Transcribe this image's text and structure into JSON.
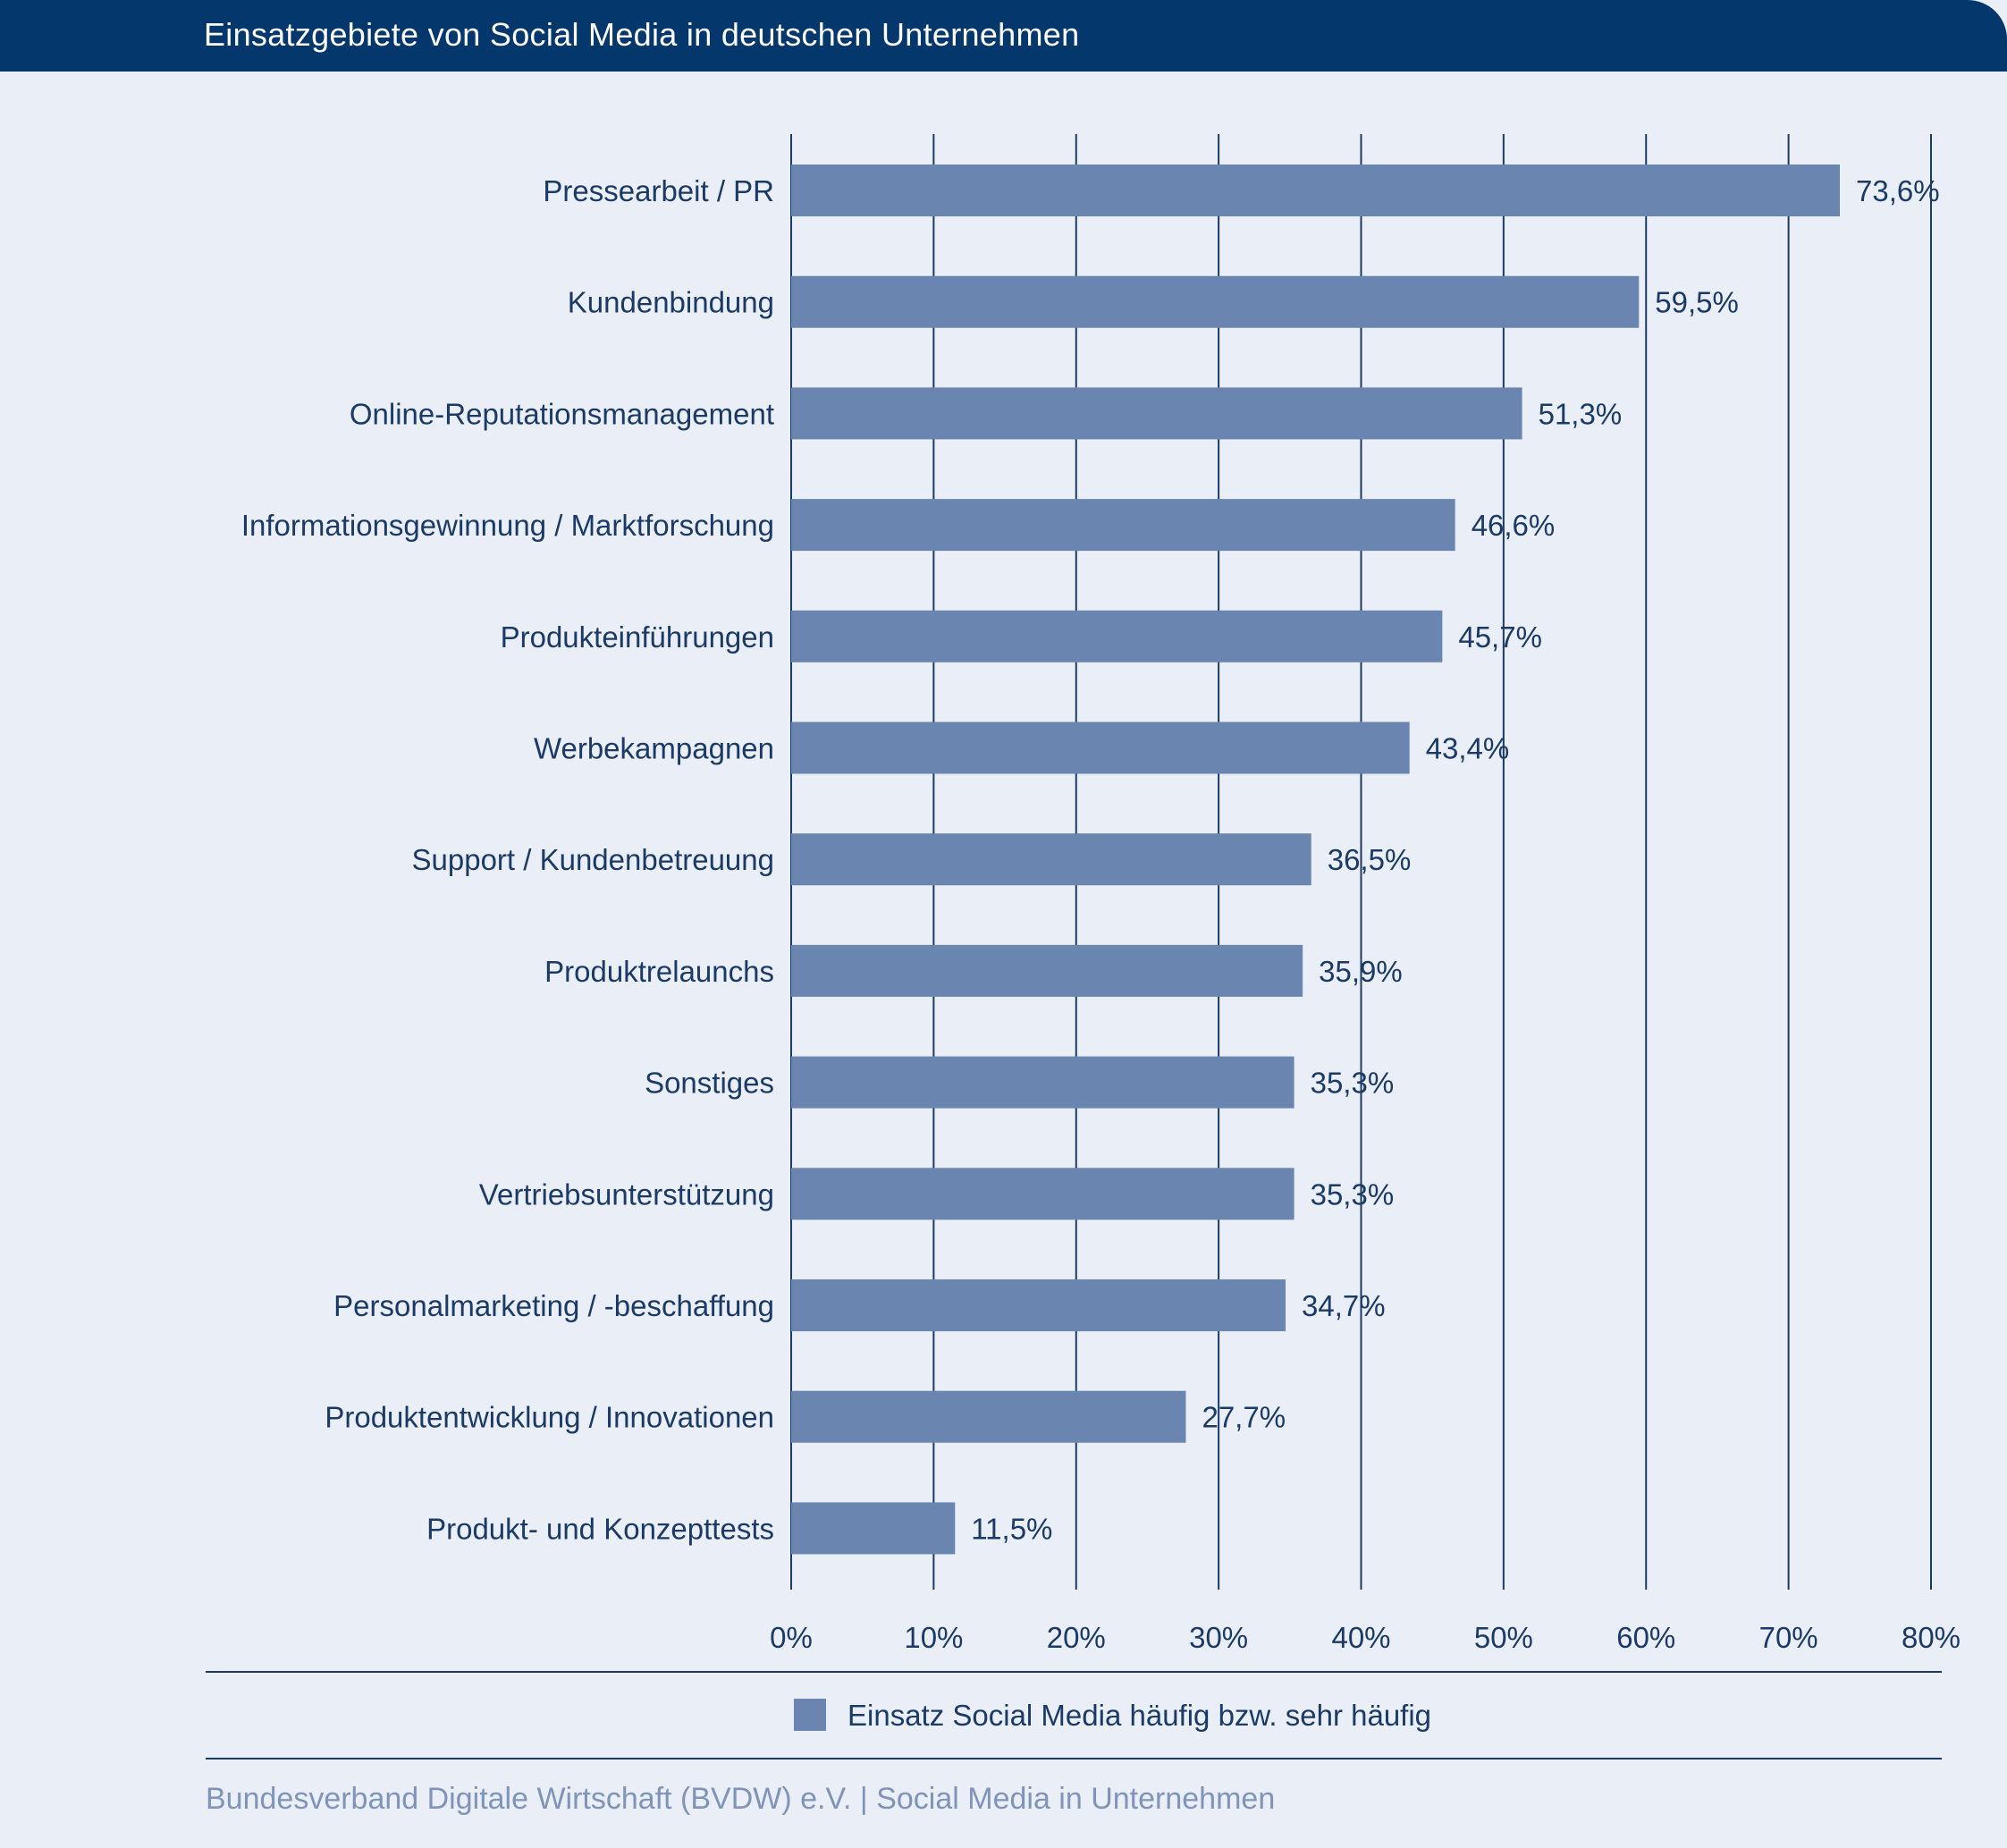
{
  "header": {
    "title": "Einsatzgebiete von Social Media in deutschen Unternehmen"
  },
  "colors": {
    "header_bg": "#04376b",
    "bar": "#6a85b0",
    "text": "#1b3a66",
    "background": "#eaeef6",
    "footer": "#7f94b8"
  },
  "chart_data": {
    "type": "bar",
    "orientation": "horizontal",
    "categories": [
      "Pressearbeit / PR",
      "Kundenbindung",
      "Online-Reputationsmanagement",
      "Informationsgewinnung / Marktforschung",
      "Produkteinführungen",
      "Werbekampagnen",
      "Support / Kundenbetreuung",
      "Produktrelaunchs",
      "Sonstiges",
      "Vertriebsunterstützung",
      "Personalmarketing / -beschaffung",
      "Produktentwicklung / Innovationen",
      "Produkt- und Konzepttests"
    ],
    "values": [
      73.6,
      59.5,
      51.3,
      46.6,
      45.7,
      43.4,
      36.5,
      35.9,
      35.3,
      35.3,
      34.7,
      27.7,
      11.5
    ],
    "value_labels": [
      "73,6%",
      "59,5%",
      "51,3%",
      "46,6%",
      "45,7%",
      "43,4%",
      "36,5%",
      "35,9%",
      "35,3%",
      "35,3%",
      "34,7%",
      "27,7%",
      "11,5%"
    ],
    "xlim": [
      0,
      80
    ],
    "xticks": [
      "0%",
      "10%",
      "20%",
      "30%",
      "40%",
      "50%",
      "60%",
      "70%",
      "80%"
    ],
    "grid": "vertical",
    "legend": {
      "position": "bottom",
      "entries": [
        "Einsatz Social Media häufig bzw. sehr häufig"
      ]
    }
  },
  "footer": {
    "text": "Bundesverband Digitale Wirtschaft (BVDW) e.V. | Social Media in Unternehmen"
  }
}
